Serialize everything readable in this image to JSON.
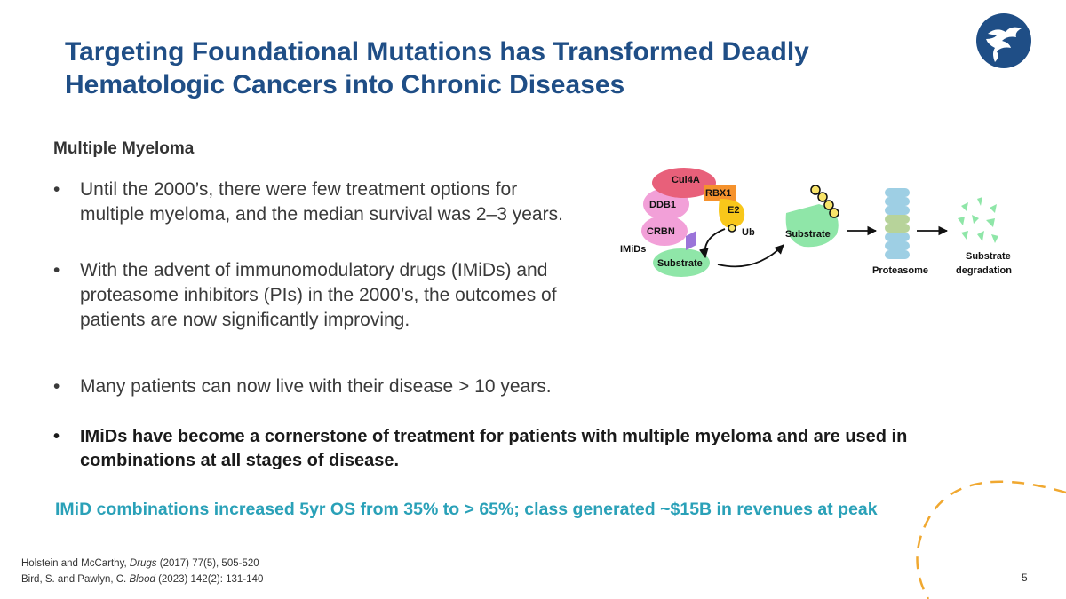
{
  "slide": {
    "title_line1": "Targeting Foundational Mutations has Transformed Deadly",
    "title_line2": "Hematologic Cancers into Chronic Diseases",
    "subheading": "Multiple Myeloma",
    "bullets": [
      {
        "text": "Until the 2000’s, there were few treatment options for multiple myeloma, and the median survival was 2–3 years."
      },
      {
        "text": "With the advent of immunomodulatory drugs (IMiDs) and proteasome inhibitors (PIs) in the 2000’s, the outcomes of patients are now significantly improving."
      },
      {
        "text": "Many patients can now live with their disease > 10 years."
      },
      {
        "text": "IMiDs have become a cornerstone of treatment for patients with multiple myeloma and are used in combinations at all stages of disease."
      }
    ],
    "bullet_symbol": "•",
    "highlight": "IMiD combinations increased 5yr OS from 35% to > 65%; class generated ~$15B in revenues at peak",
    "references": [
      {
        "authors": "Holstein and McCarthy, ",
        "journal": "Drugs",
        "rest": " (2017) 77(5), 505-520"
      },
      {
        "authors": "Bird, S. and Pawlyn, C. ",
        "journal": "Blood",
        "rest": " (2023) 142(2): 131-140"
      }
    ],
    "page_number": "5"
  },
  "diagram": {
    "labels": {
      "cul4a": "Cul4A",
      "rbx1": "RBX1",
      "ddb1": "DDB1",
      "e2": "E2",
      "crbn": "CRBN",
      "ub": "Ub",
      "imids": "IMiDs",
      "substrate_bound": "Substrate",
      "substrate_tagged": "Substrate",
      "proteasome": "Proteasome",
      "substrate_degradation_l1": "Substrate",
      "substrate_degradation_l2": "degradation"
    }
  },
  "colors": {
    "title": "#1f4e86",
    "highlight": "#2aa1b8",
    "accent_arc": "#f0a830",
    "cul4a": "#e8607a",
    "rbx1": "#f5922d",
    "ddb1": "#f2a0d8",
    "e2": "#f8c71a",
    "imid": "#9b74d9",
    "substrate": "#8fe6a8",
    "proteasome_blue": "#9ecfe4",
    "proteasome_green": "#b7d39a"
  }
}
